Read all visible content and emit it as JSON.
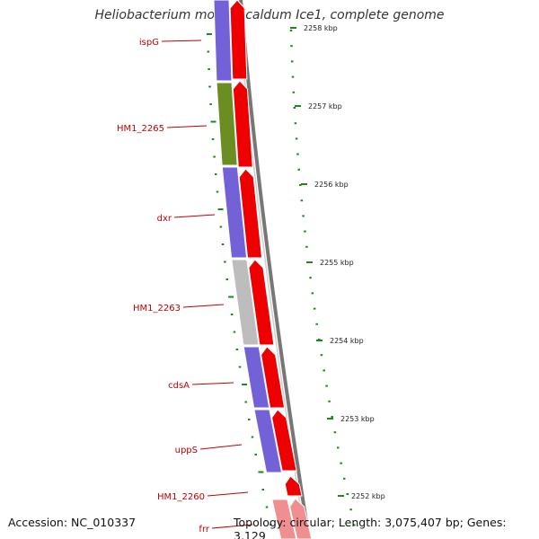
{
  "title": "Heliobacterium modesticaldum Ice1, complete genome",
  "accession": "Accession: NC_010337",
  "summary": "Topology: circular; Length: 3,075,407 bp; Genes: 3,129",
  "colors": {
    "purple": "#7361d8",
    "olive": "#6b8e23",
    "gray": "#bdbdbd",
    "red": "#ee0000",
    "pink": "#ef8f8f",
    "tick": "#1a8a1a",
    "label": "#c00000",
    "backbone": "#888888"
  },
  "genes": [
    {
      "label": "ispG",
      "color": "purple"
    },
    {
      "label": "HM1_2265",
      "color": "olive"
    },
    {
      "label": "dxr",
      "color": "purple"
    },
    {
      "label": "HM1_2263",
      "color": "gray"
    },
    {
      "label": "cdsA",
      "color": "purple"
    },
    {
      "label": "uppS",
      "color": "purple"
    },
    {
      "label": "HM1_2260",
      "color": "none"
    },
    {
      "label": "frr",
      "color": "pink"
    }
  ],
  "ticks": [
    "2258 kbp",
    "2257 kbp",
    "2256 kbp",
    "2255 kbp",
    "2254 kbp",
    "2253 kbp",
    "2252 kbp"
  ]
}
